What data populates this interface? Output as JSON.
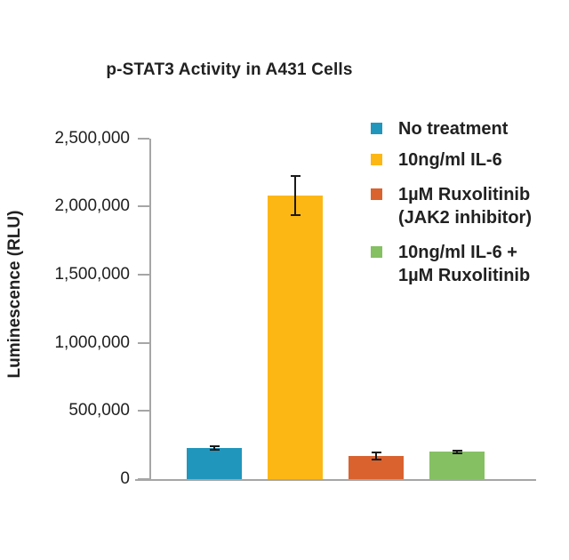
{
  "chart_data": {
    "type": "bar",
    "title": "p-STAT3 Activity in A431 Cells",
    "xlabel": "",
    "ylabel": "Luminescence (RLU)",
    "ylim": [
      0,
      2500000
    ],
    "grid": false,
    "legend_position": "upper right",
    "ytick_values": [
      0,
      500000,
      1000000,
      1500000,
      2000000,
      2500000
    ],
    "ytick_labels": [
      "0",
      "500,000",
      "1,000,000",
      "1,500,000",
      "2,000,000",
      "2,500,000"
    ],
    "categories": [
      "No treatment",
      "10ng/ml IL-6",
      "1µM Ruxolitinib (JAK2 inhibitor)",
      "10ng/ml IL-6 + 1µM Ruxolitinib"
    ],
    "series": [
      {
        "name": "Luminescence (RLU)",
        "values": [
          230000,
          2080000,
          170000,
          200000
        ],
        "errors": [
          20000,
          150000,
          30000,
          15000
        ]
      }
    ],
    "bar_slugs": [
      "no-treatment",
      "il6",
      "ruxolitinib",
      "il6-plus-ruxolitinib"
    ],
    "bar_colors": [
      "#2196bd",
      "#fdb714",
      "#d9622f",
      "#85c063"
    ],
    "legend": [
      {
        "lines": [
          "No treatment"
        ],
        "color": "#2196bd"
      },
      {
        "lines": [
          "10ng/ml IL-6"
        ],
        "color": "#fdb714"
      },
      {
        "lines": [
          "1µM Ruxolitinib",
          "(JAK2 inhibitor)"
        ],
        "color": "#d9622f"
      },
      {
        "lines": [
          "10ng/ml IL-6 +",
          "1µM Ruxolitinib"
        ],
        "color": "#85c063"
      }
    ],
    "colors": {
      "axis": "#a6a6a6",
      "error_bar": "#1a1a1a",
      "text": "#212121",
      "background": "#ffffff"
    }
  }
}
